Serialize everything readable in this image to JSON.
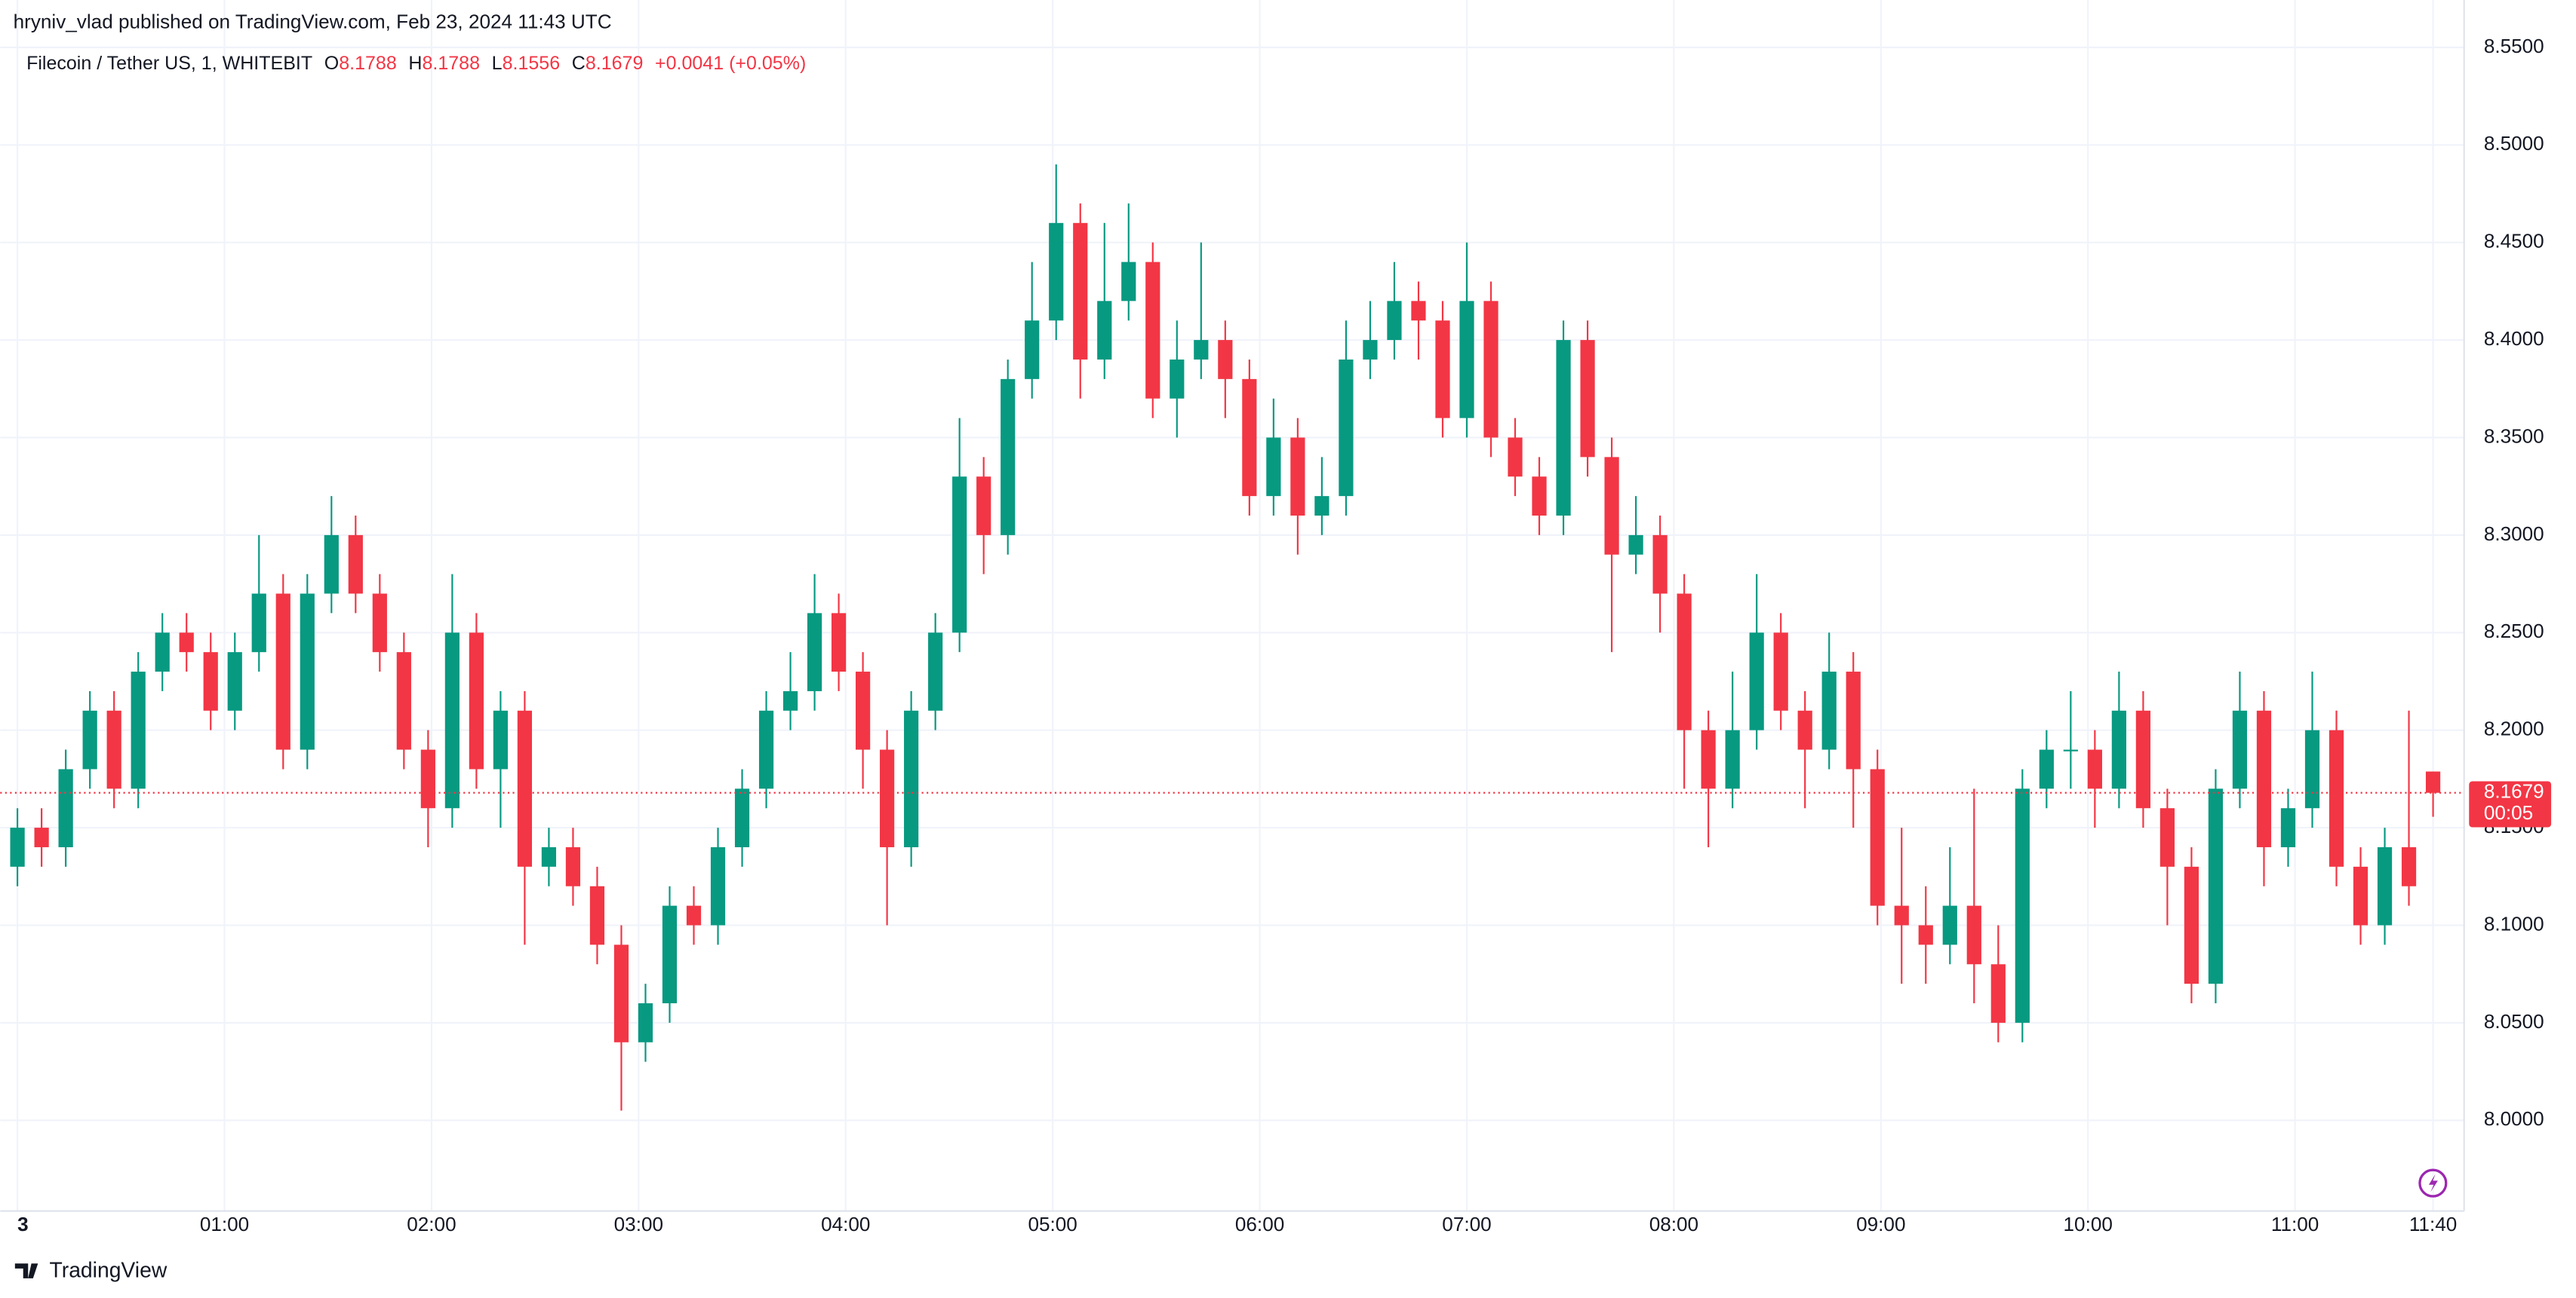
{
  "header": "hryniv_vlad published on TradingView.com, Feb 23, 2024 11:43 UTC",
  "footer": "TradingView",
  "chart_data": {
    "type": "candlestick",
    "legend": {
      "symbol": "Filecoin / Tether US, 1, WHITEBIT",
      "fields": [
        {
          "label": "O",
          "value": 8.1788
        },
        {
          "label": "H",
          "value": 8.1788
        },
        {
          "label": "L",
          "value": 8.1556
        },
        {
          "label": "C",
          "value": 8.1679
        }
      ],
      "change": "+0.0041 (+0.05%)"
    },
    "price_tag": {
      "countdown": "00:05"
    },
    "up_color": "#089981",
    "down_color": "#f23645",
    "xlim": [
      -5,
      709
    ],
    "ylim": [
      7.9535,
      8.5743
    ],
    "xticks": [
      {
        "value": 0,
        "label": "3"
      },
      {
        "value": 60,
        "label": "01:00"
      },
      {
        "value": 120,
        "label": "02:00"
      },
      {
        "value": 180,
        "label": "03:00"
      },
      {
        "value": 240,
        "label": "04:00"
      },
      {
        "value": 300,
        "label": "05:00"
      },
      {
        "value": 360,
        "label": "06:00"
      },
      {
        "value": 420,
        "label": "07:00"
      },
      {
        "value": 480,
        "label": "08:00"
      },
      {
        "value": 540,
        "label": "09:00"
      },
      {
        "value": 600,
        "label": "10:00"
      },
      {
        "value": 660,
        "label": "11:00"
      },
      {
        "value": 700,
        "label": "11:40"
      }
    ],
    "yticks": [
      {
        "value": 8.0,
        "label": "8.0000"
      },
      {
        "value": 8.05,
        "label": "8.0500"
      },
      {
        "value": 8.1,
        "label": "8.1000"
      },
      {
        "value": 8.15,
        "label": "8.1500"
      },
      {
        "value": 8.2,
        "label": "8.2000"
      },
      {
        "value": 8.25,
        "label": "8.2500"
      },
      {
        "value": 8.3,
        "label": "8.3000"
      },
      {
        "value": 8.35,
        "label": "8.3500"
      },
      {
        "value": 8.4,
        "label": "8.4000"
      },
      {
        "value": 8.45,
        "label": "8.4500"
      },
      {
        "value": 8.5,
        "label": "8.5000"
      },
      {
        "value": 8.55,
        "label": "8.5500"
      }
    ],
    "grid": true,
    "x": [
      0,
      7,
      14,
      21,
      28,
      35,
      42,
      49,
      56,
      63,
      70,
      77,
      84,
      91,
      98,
      105,
      112,
      119,
      126,
      133,
      140,
      147,
      154,
      161,
      168,
      175,
      182,
      189,
      196,
      203,
      210,
      217,
      224,
      231,
      238,
      245,
      252,
      259,
      266,
      273,
      280,
      287,
      294,
      301,
      308,
      315,
      322,
      329,
      336,
      343,
      350,
      357,
      364,
      371,
      378,
      385,
      392,
      399,
      406,
      413,
      420,
      427,
      434,
      441,
      448,
      455,
      462,
      469,
      476,
      483,
      490,
      497,
      504,
      511,
      518,
      525,
      532,
      539,
      546,
      553,
      560,
      567,
      574,
      581,
      588,
      595,
      602,
      609,
      616,
      623,
      630,
      637,
      644,
      651,
      658,
      665,
      672,
      679,
      686,
      693,
      700
    ],
    "open": [
      8.13,
      8.15,
      8.14,
      8.18,
      8.21,
      8.17,
      8.23,
      8.25,
      8.24,
      8.21,
      8.24,
      8.27,
      8.19,
      8.27,
      8.3,
      8.27,
      8.24,
      8.19,
      8.16,
      8.25,
      8.18,
      8.21,
      8.13,
      8.14,
      8.12,
      8.09,
      8.04,
      8.06,
      8.11,
      8.1,
      8.14,
      8.17,
      8.21,
      8.22,
      8.26,
      8.23,
      8.19,
      8.14,
      8.21,
      8.25,
      8.33,
      8.3,
      8.38,
      8.41,
      8.46,
      8.39,
      8.42,
      8.44,
      8.37,
      8.39,
      8.4,
      8.38,
      8.32,
      8.35,
      8.31,
      8.32,
      8.39,
      8.4,
      8.42,
      8.41,
      8.36,
      8.42,
      8.35,
      8.33,
      8.31,
      8.4,
      8.34,
      8.29,
      8.3,
      8.27,
      8.2,
      8.17,
      8.2,
      8.25,
      8.21,
      8.19,
      8.23,
      8.18,
      8.11,
      8.1,
      8.09,
      8.11,
      8.08,
      8.05,
      8.17,
      8.19,
      8.19,
      8.17,
      8.21,
      8.16,
      8.13,
      8.07,
      8.17,
      8.21,
      8.14,
      8.16,
      8.2,
      8.13,
      8.1,
      8.14,
      8.1788
    ],
    "high": [
      8.16,
      8.16,
      8.19,
      8.22,
      8.22,
      8.24,
      8.26,
      8.26,
      8.25,
      8.25,
      8.3,
      8.28,
      8.28,
      8.32,
      8.31,
      8.28,
      8.25,
      8.2,
      8.28,
      8.26,
      8.22,
      8.22,
      8.15,
      8.15,
      8.13,
      8.1,
      8.07,
      8.12,
      8.12,
      8.15,
      8.18,
      8.22,
      8.24,
      8.28,
      8.27,
      8.24,
      8.2,
      8.22,
      8.26,
      8.36,
      8.34,
      8.39,
      8.44,
      8.49,
      8.47,
      8.46,
      8.47,
      8.45,
      8.41,
      8.45,
      8.41,
      8.39,
      8.37,
      8.36,
      8.34,
      8.41,
      8.42,
      8.44,
      8.43,
      8.42,
      8.45,
      8.43,
      8.36,
      8.34,
      8.41,
      8.41,
      8.35,
      8.32,
      8.31,
      8.28,
      8.21,
      8.23,
      8.28,
      8.26,
      8.22,
      8.25,
      8.24,
      8.19,
      8.15,
      8.12,
      8.14,
      8.17,
      8.1,
      8.18,
      8.2,
      8.22,
      8.2,
      8.23,
      8.22,
      8.17,
      8.14,
      8.18,
      8.23,
      8.22,
      8.17,
      8.23,
      8.21,
      8.14,
      8.15,
      8.21,
      8.1788
    ],
    "low": [
      8.12,
      8.13,
      8.13,
      8.17,
      8.16,
      8.16,
      8.22,
      8.23,
      8.2,
      8.2,
      8.23,
      8.18,
      8.18,
      8.26,
      8.26,
      8.23,
      8.18,
      8.14,
      8.15,
      8.17,
      8.15,
      8.09,
      8.12,
      8.11,
      8.08,
      8.005,
      8.03,
      8.05,
      8.09,
      8.09,
      8.13,
      8.16,
      8.2,
      8.21,
      8.22,
      8.17,
      8.1,
      8.13,
      8.2,
      8.24,
      8.28,
      8.29,
      8.37,
      8.4,
      8.37,
      8.38,
      8.41,
      8.36,
      8.35,
      8.38,
      8.36,
      8.31,
      8.31,
      8.29,
      8.3,
      8.31,
      8.38,
      8.39,
      8.39,
      8.35,
      8.35,
      8.34,
      8.32,
      8.3,
      8.3,
      8.33,
      8.24,
      8.28,
      8.25,
      8.17,
      8.14,
      8.16,
      8.19,
      8.2,
      8.16,
      8.18,
      8.15,
      8.1,
      8.07,
      8.07,
      8.08,
      8.06,
      8.04,
      8.04,
      8.16,
      8.17,
      8.15,
      8.16,
      8.15,
      8.1,
      8.06,
      8.06,
      8.16,
      8.12,
      8.13,
      8.15,
      8.12,
      8.09,
      8.09,
      8.11,
      8.1556
    ],
    "close": [
      8.15,
      8.14,
      8.18,
      8.21,
      8.17,
      8.23,
      8.25,
      8.24,
      8.21,
      8.24,
      8.27,
      8.19,
      8.27,
      8.3,
      8.27,
      8.24,
      8.19,
      8.16,
      8.25,
      8.18,
      8.21,
      8.13,
      8.14,
      8.12,
      8.09,
      8.04,
      8.06,
      8.11,
      8.1,
      8.14,
      8.17,
      8.21,
      8.22,
      8.26,
      8.23,
      8.19,
      8.14,
      8.21,
      8.25,
      8.33,
      8.3,
      8.38,
      8.41,
      8.46,
      8.39,
      8.42,
      8.44,
      8.37,
      8.39,
      8.4,
      8.38,
      8.32,
      8.35,
      8.31,
      8.32,
      8.39,
      8.4,
      8.42,
      8.41,
      8.36,
      8.42,
      8.35,
      8.33,
      8.31,
      8.4,
      8.34,
      8.29,
      8.3,
      8.27,
      8.2,
      8.17,
      8.2,
      8.25,
      8.21,
      8.19,
      8.23,
      8.18,
      8.11,
      8.1,
      8.09,
      8.11,
      8.08,
      8.05,
      8.17,
      8.19,
      8.19,
      8.17,
      8.21,
      8.16,
      8.13,
      8.07,
      8.17,
      8.21,
      8.14,
      8.16,
      8.2,
      8.13,
      8.1,
      8.14,
      8.12,
      8.1679
    ]
  }
}
